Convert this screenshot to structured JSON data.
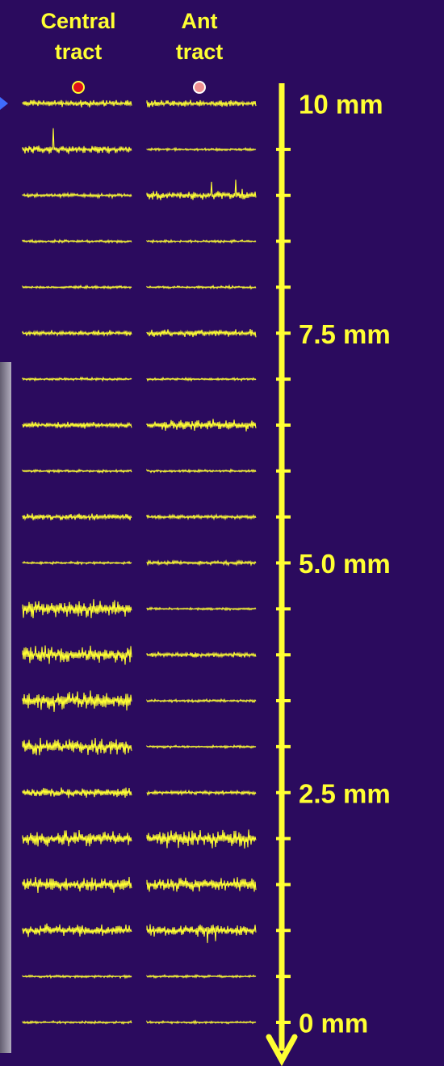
{
  "columns": [
    {
      "title": [
        "Central",
        "tract"
      ]
    },
    {
      "title": [
        "Ant",
        "tract"
      ]
    }
  ],
  "depth_labels": [
    "10 mm",
    "7.5 mm",
    "5.0 mm",
    "2.5 mm",
    "0 mm"
  ]
}
